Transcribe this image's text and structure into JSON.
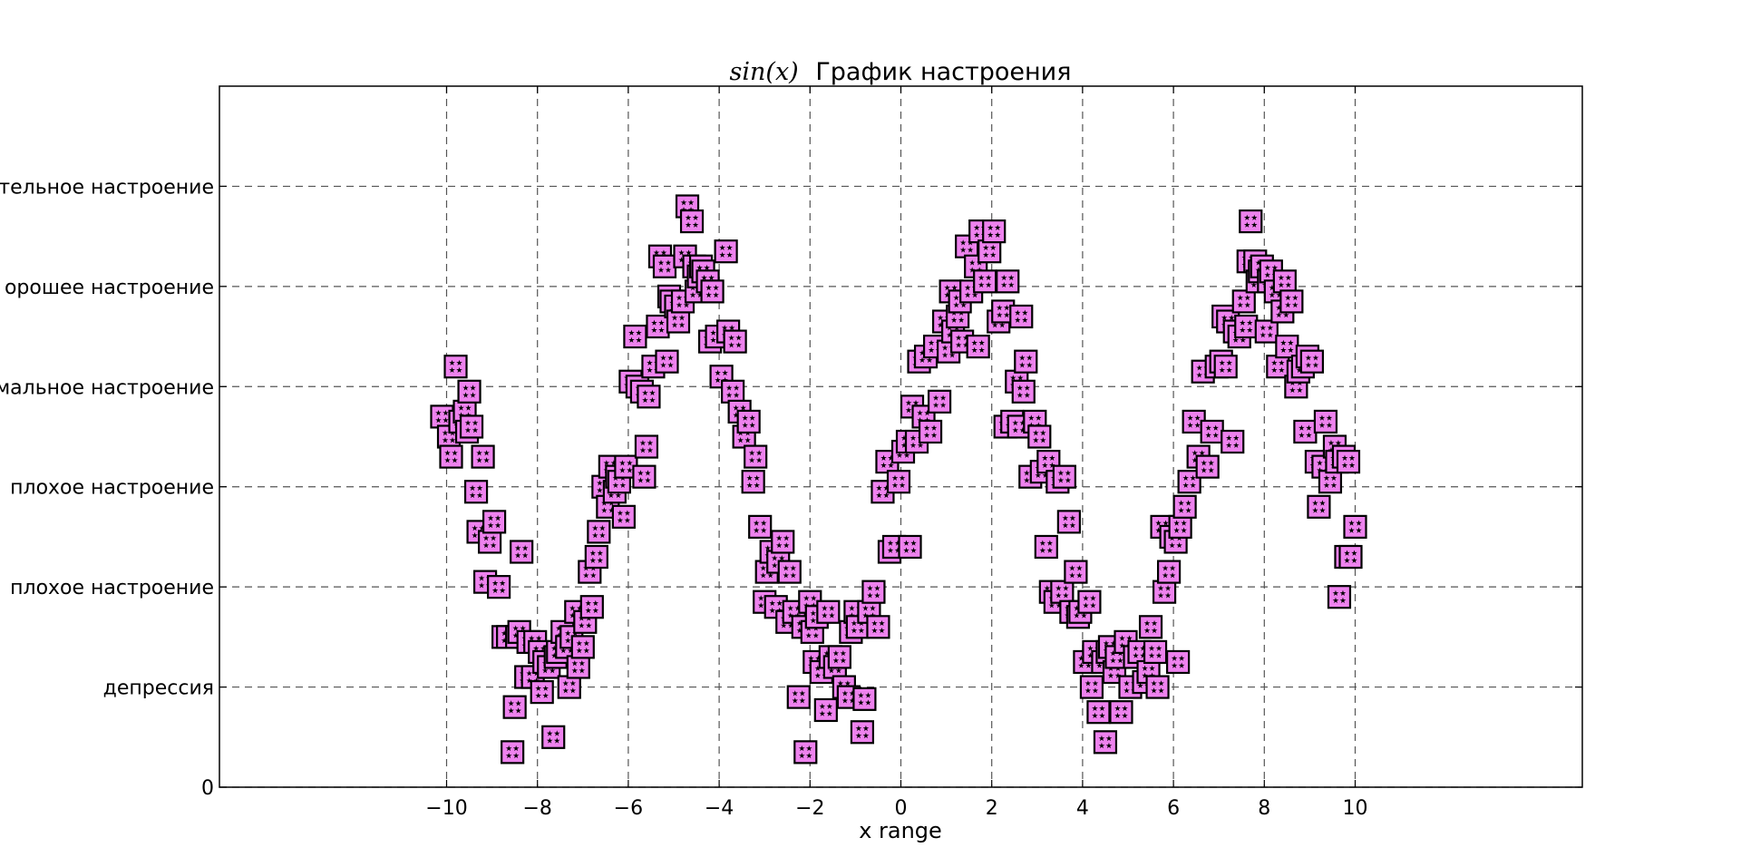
{
  "chart_data": {
    "type": "scatter",
    "title": {
      "math": "sin(x)",
      "text": "График настроения"
    },
    "xlabel": "x range",
    "ylabel": "",
    "xlim": [
      -15,
      15
    ],
    "ylim": [
      0,
      7
    ],
    "grid": true,
    "x_ticks": [
      -10,
      -8,
      -6,
      -4,
      -2,
      0,
      2,
      4,
      6,
      8,
      10
    ],
    "x_tick_labels": [
      "−10",
      "−8",
      "−6",
      "−4",
      "−2",
      "0",
      "2",
      "4",
      "6",
      "8",
      "10"
    ],
    "y_ticks": [
      0,
      1,
      2,
      3,
      4,
      5,
      6
    ],
    "y_tick_labels": [
      "0",
      "депрессия",
      "плохое настроение",
      "плохое настроение",
      "мальное настроение",
      "орошее настроение",
      "тельное настроение"
    ],
    "colors": {
      "marker_fill": "#ee82ee",
      "marker_edge": "#000000",
      "grid": "#555555"
    },
    "series": [
      {
        "marker": "square-with-stars",
        "points": [
          [
            -10.1,
            3.7
          ],
          [
            -9.95,
            3.5
          ],
          [
            -9.9,
            3.3
          ],
          [
            -9.8,
            4.2
          ],
          [
            -9.7,
            3.65
          ],
          [
            -9.6,
            3.75
          ],
          [
            -9.55,
            3.55
          ],
          [
            -9.5,
            3.95
          ],
          [
            -9.45,
            3.6
          ],
          [
            -9.35,
            2.95
          ],
          [
            -9.3,
            2.55
          ],
          [
            -9.2,
            3.3
          ],
          [
            -9.15,
            2.05
          ],
          [
            -9.05,
            2.45
          ],
          [
            -8.95,
            2.65
          ],
          [
            -8.85,
            2.0
          ],
          [
            -8.75,
            1.5
          ],
          [
            -8.65,
            1.5
          ],
          [
            -8.55,
            0.35
          ],
          [
            -8.5,
            0.8
          ],
          [
            -8.45,
            1.5
          ],
          [
            -8.4,
            1.55
          ],
          [
            -8.35,
            2.35
          ],
          [
            -8.25,
            1.1
          ],
          [
            -8.2,
            1.45
          ],
          [
            -8.1,
            1.1
          ],
          [
            -8.05,
            1.45
          ],
          [
            -7.95,
            1.35
          ],
          [
            -7.9,
            0.95
          ],
          [
            -7.85,
            1.25
          ],
          [
            -7.75,
            1.2
          ],
          [
            -7.65,
            0.5
          ],
          [
            -7.6,
            1.3
          ],
          [
            -7.55,
            1.35
          ],
          [
            -7.45,
            1.55
          ],
          [
            -7.35,
            1.4
          ],
          [
            -7.3,
            1.0
          ],
          [
            -7.25,
            1.5
          ],
          [
            -7.15,
            1.75
          ],
          [
            -7.1,
            1.2
          ],
          [
            -7.0,
            1.4
          ],
          [
            -6.95,
            1.65
          ],
          [
            -6.85,
            2.15
          ],
          [
            -6.8,
            1.8
          ],
          [
            -6.7,
            2.3
          ],
          [
            -6.65,
            2.55
          ],
          [
            -6.55,
            3.0
          ],
          [
            -6.45,
            2.8
          ],
          [
            -6.4,
            3.2
          ],
          [
            -6.3,
            2.95
          ],
          [
            -6.25,
            3.1
          ],
          [
            -6.2,
            3.05
          ],
          [
            -6.1,
            2.7
          ],
          [
            -6.05,
            3.2
          ],
          [
            -5.95,
            4.05
          ],
          [
            -5.85,
            4.5
          ],
          [
            -5.8,
            4.0
          ],
          [
            -5.7,
            3.95
          ],
          [
            -5.65,
            3.1
          ],
          [
            -5.6,
            3.4
          ],
          [
            -5.55,
            3.9
          ],
          [
            -5.45,
            4.2
          ],
          [
            -5.35,
            4.6
          ],
          [
            -5.3,
            5.3
          ],
          [
            -5.2,
            5.2
          ],
          [
            -5.15,
            4.25
          ],
          [
            -5.1,
            4.9
          ],
          [
            -5.05,
            4.85
          ],
          [
            -4.95,
            4.8
          ],
          [
            -4.9,
            4.65
          ],
          [
            -4.8,
            4.85
          ],
          [
            -4.75,
            5.3
          ],
          [
            -4.7,
            5.8
          ],
          [
            -4.6,
            5.65
          ],
          [
            -4.55,
            5.2
          ],
          [
            -4.5,
            4.95
          ],
          [
            -4.45,
            5.1
          ],
          [
            -4.4,
            5.2
          ],
          [
            -4.35,
            5.15
          ],
          [
            -4.25,
            5.05
          ],
          [
            -4.2,
            4.45
          ],
          [
            -4.15,
            4.95
          ],
          [
            -4.05,
            4.5
          ],
          [
            -3.95,
            4.1
          ],
          [
            -3.85,
            5.35
          ],
          [
            -3.8,
            4.55
          ],
          [
            -3.7,
            3.95
          ],
          [
            -3.65,
            4.45
          ],
          [
            -3.55,
            3.75
          ],
          [
            -3.45,
            3.5
          ],
          [
            -3.35,
            3.65
          ],
          [
            -3.25,
            3.05
          ],
          [
            -3.2,
            3.3
          ],
          [
            -3.1,
            2.6
          ],
          [
            -3.0,
            1.85
          ],
          [
            -2.95,
            2.15
          ],
          [
            -2.85,
            2.35
          ],
          [
            -2.75,
            1.8
          ],
          [
            -2.7,
            2.25
          ],
          [
            -2.6,
            2.45
          ],
          [
            -2.5,
            1.65
          ],
          [
            -2.45,
            2.15
          ],
          [
            -2.35,
            1.75
          ],
          [
            -2.25,
            0.9
          ],
          [
            -2.15,
            1.6
          ],
          [
            -2.1,
            0.35
          ],
          [
            -2.0,
            1.85
          ],
          [
            -1.95,
            1.55
          ],
          [
            -1.9,
            1.25
          ],
          [
            -1.85,
            1.7
          ],
          [
            -1.75,
            1.15
          ],
          [
            -1.65,
            0.77
          ],
          [
            -1.6,
            1.75
          ],
          [
            -1.55,
            1.3
          ],
          [
            -1.45,
            1.2
          ],
          [
            -1.35,
            1.3
          ],
          [
            -1.25,
            1.0
          ],
          [
            -1.15,
            0.9
          ],
          [
            -1.1,
            1.55
          ],
          [
            -1.0,
            1.75
          ],
          [
            -0.95,
            1.6
          ],
          [
            -0.85,
            0.55
          ],
          [
            -0.8,
            0.88
          ],
          [
            -0.7,
            1.75
          ],
          [
            -0.6,
            1.95
          ],
          [
            -0.5,
            1.6
          ],
          [
            -0.4,
            2.95
          ],
          [
            -0.3,
            3.25
          ],
          [
            -0.25,
            2.35
          ],
          [
            -0.15,
            2.4
          ],
          [
            -0.05,
            3.05
          ],
          [
            0.05,
            3.35
          ],
          [
            0.15,
            3.45
          ],
          [
            0.2,
            2.4
          ],
          [
            0.25,
            3.8
          ],
          [
            0.35,
            3.45
          ],
          [
            0.4,
            4.25
          ],
          [
            0.5,
            3.7
          ],
          [
            0.55,
            4.3
          ],
          [
            0.65,
            3.55
          ],
          [
            0.75,
            4.4
          ],
          [
            0.85,
            3.85
          ],
          [
            0.95,
            4.65
          ],
          [
            1.05,
            4.35
          ],
          [
            1.1,
            4.95
          ],
          [
            1.15,
            4.55
          ],
          [
            1.25,
            4.7
          ],
          [
            1.3,
            4.85
          ],
          [
            1.35,
            4.45
          ],
          [
            1.45,
            5.4
          ],
          [
            1.55,
            4.95
          ],
          [
            1.65,
            5.2
          ],
          [
            1.7,
            4.4
          ],
          [
            1.75,
            5.55
          ],
          [
            1.85,
            5.05
          ],
          [
            1.95,
            5.35
          ],
          [
            2.05,
            5.55
          ],
          [
            2.15,
            4.65
          ],
          [
            2.25,
            4.75
          ],
          [
            2.3,
            3.6
          ],
          [
            2.35,
            5.05
          ],
          [
            2.45,
            3.65
          ],
          [
            2.55,
            4.05
          ],
          [
            2.6,
            3.6
          ],
          [
            2.65,
            4.7
          ],
          [
            2.7,
            3.95
          ],
          [
            2.75,
            4.25
          ],
          [
            2.85,
            3.1
          ],
          [
            2.95,
            3.65
          ],
          [
            3.05,
            3.5
          ],
          [
            3.1,
            3.15
          ],
          [
            3.2,
            2.4
          ],
          [
            3.25,
            3.25
          ],
          [
            3.3,
            1.95
          ],
          [
            3.4,
            1.85
          ],
          [
            3.45,
            3.05
          ],
          [
            3.55,
            1.95
          ],
          [
            3.6,
            3.1
          ],
          [
            3.7,
            2.65
          ],
          [
            3.75,
            1.75
          ],
          [
            3.85,
            2.15
          ],
          [
            3.9,
            1.7
          ],
          [
            3.95,
            1.75
          ],
          [
            4.05,
            1.25
          ],
          [
            4.15,
            1.85
          ],
          [
            4.2,
            1.0
          ],
          [
            4.25,
            1.35
          ],
          [
            4.35,
            0.75
          ],
          [
            4.45,
            1.25
          ],
          [
            4.5,
            0.45
          ],
          [
            4.55,
            1.35
          ],
          [
            4.6,
            1.4
          ],
          [
            4.7,
            1.15
          ],
          [
            4.75,
            1.3
          ],
          [
            4.85,
            0.75
          ],
          [
            4.95,
            1.45
          ],
          [
            5.05,
            1.0
          ],
          [
            5.15,
            1.3
          ],
          [
            5.25,
            1.35
          ],
          [
            5.35,
            1.05
          ],
          [
            5.45,
            1.15
          ],
          [
            5.5,
            1.6
          ],
          [
            5.6,
            1.35
          ],
          [
            5.65,
            1.0
          ],
          [
            5.75,
            2.6
          ],
          [
            5.8,
            1.95
          ],
          [
            5.9,
            2.15
          ],
          [
            5.95,
            2.5
          ],
          [
            6.05,
            2.45
          ],
          [
            6.1,
            1.25
          ],
          [
            6.15,
            2.6
          ],
          [
            6.25,
            2.8
          ],
          [
            6.35,
            3.05
          ],
          [
            6.45,
            3.65
          ],
          [
            6.55,
            3.3
          ],
          [
            6.65,
            4.15
          ],
          [
            6.75,
            3.2
          ],
          [
            6.85,
            3.55
          ],
          [
            6.95,
            4.2
          ],
          [
            7.05,
            4.25
          ],
          [
            7.1,
            4.7
          ],
          [
            7.15,
            4.2
          ],
          [
            7.2,
            4.65
          ],
          [
            7.3,
            3.45
          ],
          [
            7.35,
            4.55
          ],
          [
            7.45,
            4.5
          ],
          [
            7.55,
            4.85
          ],
          [
            7.6,
            4.6
          ],
          [
            7.65,
            5.25
          ],
          [
            7.7,
            5.65
          ],
          [
            7.8,
            5.25
          ],
          [
            7.85,
            5.05
          ],
          [
            7.9,
            5.15
          ],
          [
            7.95,
            5.2
          ],
          [
            8.05,
            4.55
          ],
          [
            8.1,
            5.05
          ],
          [
            8.15,
            5.15
          ],
          [
            8.25,
            4.95
          ],
          [
            8.3,
            4.2
          ],
          [
            8.4,
            4.75
          ],
          [
            8.45,
            5.05
          ],
          [
            8.5,
            4.4
          ],
          [
            8.6,
            4.85
          ],
          [
            8.7,
            4.0
          ],
          [
            8.75,
            4.15
          ],
          [
            8.85,
            4.2
          ],
          [
            8.9,
            3.55
          ],
          [
            8.95,
            4.3
          ],
          [
            9.05,
            4.25
          ],
          [
            9.15,
            3.25
          ],
          [
            9.2,
            2.8
          ],
          [
            9.3,
            3.2
          ],
          [
            9.35,
            3.65
          ],
          [
            9.45,
            3.05
          ],
          [
            9.55,
            3.4
          ],
          [
            9.6,
            3.25
          ],
          [
            9.65,
            1.9
          ],
          [
            9.75,
            3.3
          ],
          [
            9.8,
            2.3
          ],
          [
            9.85,
            3.25
          ],
          [
            9.9,
            2.3
          ],
          [
            10.0,
            2.6
          ]
        ]
      }
    ]
  }
}
